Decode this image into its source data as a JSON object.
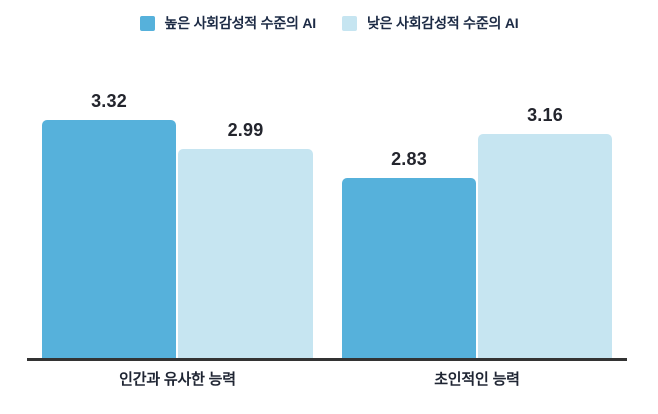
{
  "legend": {
    "items": [
      {
        "label": "높은 사회감성적 수준의 AI",
        "color": "#56B1DB"
      },
      {
        "label": "낮은 사회감성적 수준의 AI",
        "color": "#C6E5F1"
      }
    ]
  },
  "chart_data": {
    "type": "bar",
    "categories": [
      "인간과 유사한 능력",
      "초인적인 능력"
    ],
    "series": [
      {
        "name": "높은 사회감성적 수준의 AI",
        "values": [
          3.32,
          2.83
        ],
        "color": "#56B1DB"
      },
      {
        "name": "낮은 사회감성적 수준의 AI",
        "values": [
          2.99,
          3.16
        ],
        "color": "#C6E5F1"
      }
    ],
    "value_labels": [
      "3.32",
      "2.99",
      "2.83",
      "3.16"
    ],
    "title": "",
    "xlabel": "",
    "ylabel": "",
    "ylim": [
      0,
      3.5
    ],
    "grid": false,
    "legend_position": "top-center",
    "axis_line_color": "#333333",
    "background": "#ffffff"
  }
}
